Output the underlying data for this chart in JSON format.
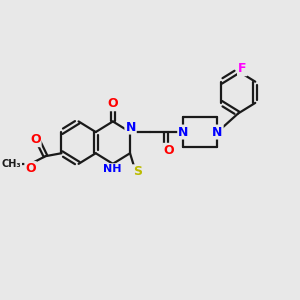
{
  "background_color": "#e8e8e8",
  "bond_color": "#1a1a1a",
  "bond_width": 1.6,
  "atom_colors": {
    "O": "#ff0000",
    "N": "#0000ff",
    "S": "#bbbb00",
    "F": "#ff00ff",
    "C": "#1a1a1a",
    "H": "#1a1a1a"
  },
  "figsize": [
    3.0,
    3.0
  ],
  "dpi": 100,
  "xlim": [
    0,
    10
  ],
  "ylim": [
    0,
    10
  ]
}
